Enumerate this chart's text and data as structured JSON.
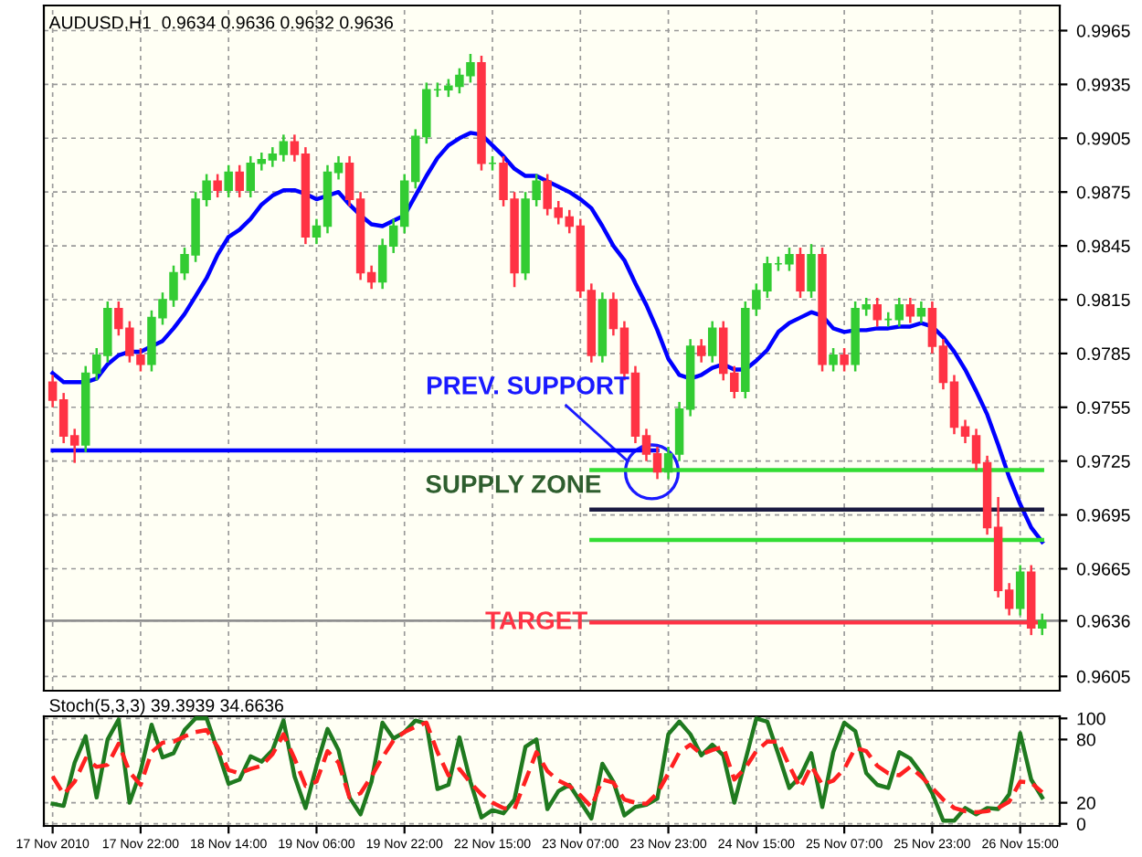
{
  "chart_data": [
    {
      "type": "candlestick",
      "title": "AUDUSD,H1  0.9634 0.9636 0.9632 0.9636",
      "categories": [
        null,
        null,
        null,
        null,
        null,
        null,
        null,
        null,
        null,
        null,
        null,
        null,
        null,
        null,
        null,
        null,
        null,
        null,
        null,
        null,
        null,
        null,
        null,
        null,
        null,
        null,
        null,
        null,
        null,
        null,
        null,
        null,
        null,
        null,
        null,
        null,
        null,
        null,
        null,
        null,
        null,
        null,
        null,
        null,
        null,
        null,
        null,
        null,
        null,
        null,
        null,
        null,
        null,
        null,
        null,
        null,
        null,
        null,
        null,
        null,
        null,
        null,
        null,
        null,
        null,
        null,
        null,
        null,
        null,
        null,
        null,
        null,
        null,
        null,
        null,
        null,
        null,
        null,
        null,
        null,
        null,
        null,
        null,
        null,
        null,
        null,
        null,
        null,
        null,
        null,
        null
      ],
      "ohlc": [
        [
          0.9769,
          0.9773,
          0.9755,
          0.9759
        ],
        [
          0.9759,
          0.9763,
          0.9735,
          0.9739
        ],
        [
          0.9739,
          0.9743,
          0.9724,
          0.9734
        ],
        [
          0.9734,
          0.9778,
          0.973,
          0.9774
        ],
        [
          0.9774,
          0.9788,
          0.977,
          0.9784
        ],
        [
          0.9784,
          0.9814,
          0.978,
          0.981
        ],
        [
          0.981,
          0.9814,
          0.9795,
          0.9799
        ],
        [
          0.9799,
          0.9803,
          0.978,
          0.9784
        ],
        [
          0.9784,
          0.9788,
          0.9775,
          0.9779
        ],
        [
          0.9779,
          0.9809,
          0.9775,
          0.9805
        ],
        [
          0.9805,
          0.9819,
          0.9801,
          0.9815
        ],
        [
          0.9815,
          0.9834,
          0.9811,
          0.983
        ],
        [
          0.983,
          0.9844,
          0.9826,
          0.984
        ],
        [
          0.984,
          0.9875,
          0.9836,
          0.9871
        ],
        [
          0.9871,
          0.9885,
          0.9867,
          0.9881
        ],
        [
          0.9881,
          0.9885,
          0.9872,
          0.9876
        ],
        [
          0.9876,
          0.989,
          0.9872,
          0.9886
        ],
        [
          0.9886,
          0.989,
          0.9872,
          0.9876
        ],
        [
          0.9876,
          0.9895,
          0.9872,
          0.9891
        ],
        [
          0.9891,
          0.9897,
          0.9887,
          0.9893
        ],
        [
          0.9893,
          0.99,
          0.9889,
          0.9896
        ],
        [
          0.9896,
          0.9907,
          0.9892,
          0.9903
        ],
        [
          0.9903,
          0.9907,
          0.9892,
          0.9896
        ],
        [
          0.9896,
          0.99,
          0.9846,
          0.985
        ],
        [
          0.985,
          0.986,
          0.9846,
          0.9856
        ],
        [
          0.9856,
          0.989,
          0.9852,
          0.9886
        ],
        [
          0.9886,
          0.9895,
          0.9882,
          0.9891
        ],
        [
          0.9891,
          0.9895,
          0.9867,
          0.9871
        ],
        [
          0.9871,
          0.9875,
          0.9826,
          0.983
        ],
        [
          0.983,
          0.9834,
          0.9821,
          0.9825
        ],
        [
          0.9825,
          0.9849,
          0.9821,
          0.9845
        ],
        [
          0.9845,
          0.986,
          0.9841,
          0.9856
        ],
        [
          0.9856,
          0.9885,
          0.9852,
          0.9881
        ],
        [
          0.9881,
          0.991,
          0.9877,
          0.9906
        ],
        [
          0.9906,
          0.9936,
          0.9902,
          0.9932
        ],
        [
          0.9932,
          0.9936,
          0.9928,
          0.9932
        ],
        [
          0.9932,
          0.9938,
          0.9928,
          0.9934
        ],
        [
          0.9934,
          0.9944,
          0.993,
          0.994
        ],
        [
          0.994,
          0.9952,
          0.9936,
          0.9947
        ],
        [
          0.9947,
          0.9951,
          0.9887,
          0.9891
        ],
        [
          0.9891,
          0.9895,
          0.9887,
          0.9891
        ],
        [
          0.9891,
          0.9895,
          0.9867,
          0.9871
        ],
        [
          0.9871,
          0.9875,
          0.9822,
          0.983
        ],
        [
          0.983,
          0.9875,
          0.9826,
          0.9871
        ],
        [
          0.9871,
          0.9885,
          0.9867,
          0.9881
        ],
        [
          0.9881,
          0.9885,
          0.9862,
          0.9866
        ],
        [
          0.9866,
          0.987,
          0.9857,
          0.9861
        ],
        [
          0.9861,
          0.9865,
          0.9852,
          0.9856
        ],
        [
          0.9856,
          0.986,
          0.9816,
          0.982
        ],
        [
          0.982,
          0.9824,
          0.978,
          0.9784
        ],
        [
          0.9784,
          0.9819,
          0.978,
          0.9815
        ],
        [
          0.9815,
          0.9819,
          0.9795,
          0.9799
        ],
        [
          0.9799,
          0.9803,
          0.977,
          0.9774
        ],
        [
          0.9774,
          0.9778,
          0.9735,
          0.9739
        ],
        [
          0.9739,
          0.9743,
          0.9725,
          0.9729
        ],
        [
          0.9729,
          0.9733,
          0.9715,
          0.9719
        ],
        [
          0.9719,
          0.9733,
          0.9715,
          0.9729
        ],
        [
          0.9729,
          0.9758,
          0.9725,
          0.9754
        ],
        [
          0.9754,
          0.9793,
          0.975,
          0.9789
        ],
        [
          0.9789,
          0.9793,
          0.978,
          0.9784
        ],
        [
          0.9784,
          0.9803,
          0.978,
          0.9799
        ],
        [
          0.9799,
          0.9803,
          0.977,
          0.9774
        ],
        [
          0.9774,
          0.9778,
          0.976,
          0.9764
        ],
        [
          0.9764,
          0.9814,
          0.976,
          0.981
        ],
        [
          0.981,
          0.9824,
          0.9806,
          0.982
        ],
        [
          0.982,
          0.9839,
          0.9816,
          0.9835
        ],
        [
          0.9835,
          0.9839,
          0.9831,
          0.9835
        ],
        [
          0.9835,
          0.9844,
          0.9831,
          0.984
        ],
        [
          0.984,
          0.9844,
          0.9816,
          0.982
        ],
        [
          0.982,
          0.9846,
          0.9816,
          0.984
        ],
        [
          0.984,
          0.9844,
          0.9775,
          0.9779
        ],
        [
          0.9779,
          0.9788,
          0.9775,
          0.9784
        ],
        [
          0.9784,
          0.9788,
          0.9775,
          0.9779
        ],
        [
          0.9779,
          0.9814,
          0.9775,
          0.981
        ],
        [
          0.981,
          0.9816,
          0.9806,
          0.9812
        ],
        [
          0.9812,
          0.9816,
          0.98,
          0.9804
        ],
        [
          0.9804,
          0.9808,
          0.98,
          0.9804
        ],
        [
          0.9804,
          0.9816,
          0.98,
          0.9812
        ],
        [
          0.9812,
          0.9816,
          0.9802,
          0.9806
        ],
        [
          0.9806,
          0.9814,
          0.9802,
          0.981
        ],
        [
          0.981,
          0.9814,
          0.9785,
          0.9789
        ],
        [
          0.9789,
          0.9793,
          0.9765,
          0.9769
        ],
        [
          0.9769,
          0.9773,
          0.974,
          0.9744
        ],
        [
          0.9744,
          0.9748,
          0.9735,
          0.9739
        ],
        [
          0.9739,
          0.9743,
          0.972,
          0.9724
        ],
        [
          0.9724,
          0.9728,
          0.9684,
          0.9688
        ],
        [
          0.9688,
          0.9705,
          0.9649,
          0.9653
        ],
        [
          0.9653,
          0.9657,
          0.9639,
          0.9643
        ],
        [
          0.9643,
          0.9667,
          0.9639,
          0.9663
        ],
        [
          0.9663,
          0.9667,
          0.9628,
          0.9632
        ],
        [
          0.9632,
          0.964,
          0.9628,
          0.9636
        ]
      ],
      "series": [
        {
          "type": "line",
          "color": "#0000ff",
          "values": [
            0.9774,
            0.9769,
            0.9769,
            0.9769,
            0.9771,
            0.9779,
            0.9784,
            0.9786,
            0.9786,
            0.9789,
            0.9792,
            0.9799,
            0.9807,
            0.9817,
            0.9827,
            0.984,
            0.985,
            0.9854,
            0.986,
            0.9868,
            0.9873,
            0.9876,
            0.9876,
            0.9874,
            0.9871,
            0.9873,
            0.9875,
            0.9868,
            0.9862,
            0.9857,
            0.9856,
            0.9859,
            0.9862,
            0.9873,
            0.9884,
            0.9894,
            0.9901,
            0.9905,
            0.9908,
            0.9907,
            0.9901,
            0.9895,
            0.9888,
            0.9884,
            0.9884,
            0.9881,
            0.9878,
            0.9875,
            0.9871,
            0.9866,
            0.9856,
            0.9845,
            0.9837,
            0.9824,
            0.9812,
            0.9798,
            0.9782,
            0.9773,
            0.9771,
            0.9773,
            0.9777,
            0.9779,
            0.9776,
            0.9776,
            0.9781,
            0.9787,
            0.9797,
            0.9802,
            0.9805,
            0.9808,
            0.9806,
            0.9799,
            0.9797,
            0.9798,
            0.9798,
            0.9799,
            0.9799,
            0.98,
            0.98,
            0.9802,
            0.98,
            0.9794,
            0.9786,
            0.9776,
            0.9764,
            0.9751,
            0.9734,
            0.9716,
            0.9701,
            0.9688,
            0.968
          ]
        },
        {
          "type": "line",
          "color": "#0000ff",
          "values": [
            0.9731,
            0.9731,
            0.9731,
            0.9731,
            0.9731,
            0.9731,
            0.9731,
            0.9731,
            0.9731,
            0.9731,
            0.9731,
            0.9731,
            0.9731,
            0.9731,
            0.9731,
            0.9731,
            0.9731,
            0.9731,
            0.9731,
            0.9731,
            0.9731,
            0.9731,
            0.9731,
            0.9731,
            0.9731,
            0.9731,
            0.9731,
            0.9731,
            0.9731,
            0.9731,
            0.9731,
            0.9731,
            0.9731,
            0.9731,
            0.9731,
            0.9731,
            0.9731,
            0.9731,
            0.9731,
            0.9731,
            0.9731,
            0.9731,
            0.9731,
            0.9731,
            0.9731,
            0.9731,
            0.9731,
            0.9731,
            0.9731,
            0.9731,
            0.9731,
            0.9731,
            0.9731,
            0.9731,
            0.9731,
            0.9731,
            null,
            null,
            null,
            null,
            null,
            null,
            null,
            null,
            null,
            null,
            null,
            null,
            null,
            null,
            null,
            null,
            null,
            null,
            null,
            null,
            null,
            null,
            null,
            null,
            null,
            null,
            null,
            null,
            null,
            null,
            null,
            null,
            null,
            null,
            null
          ]
        },
        {
          "type": "line",
          "color": "#33dd33",
          "values": [
            null,
            null,
            null,
            null,
            null,
            null,
            null,
            null,
            null,
            null,
            null,
            null,
            null,
            null,
            null,
            null,
            null,
            null,
            null,
            null,
            null,
            null,
            null,
            null,
            null,
            null,
            null,
            null,
            null,
            null,
            null,
            null,
            null,
            null,
            null,
            null,
            null,
            null,
            null,
            null,
            null,
            null,
            null,
            null,
            null,
            null,
            null,
            null,
            null,
            0.972,
            0.972,
            0.972,
            0.972,
            0.972,
            0.972,
            0.972,
            0.972,
            0.972,
            0.972,
            0.972,
            0.972,
            0.972,
            0.972,
            0.972,
            0.972,
            0.972,
            0.972,
            0.972,
            0.972,
            0.972,
            0.972,
            0.972,
            0.972,
            0.972,
            0.972,
            0.972,
            0.972,
            0.972,
            0.972,
            0.972,
            0.972,
            0.972,
            0.972,
            0.972,
            0.972,
            0.972,
            0.972,
            0.972,
            0.972,
            0.972,
            0.972
          ]
        },
        {
          "type": "line",
          "color": "#1a1a40",
          "values": [
            null,
            null,
            null,
            null,
            null,
            null,
            null,
            null,
            null,
            null,
            null,
            null,
            null,
            null,
            null,
            null,
            null,
            null,
            null,
            null,
            null,
            null,
            null,
            null,
            null,
            null,
            null,
            null,
            null,
            null,
            null,
            null,
            null,
            null,
            null,
            null,
            null,
            null,
            null,
            null,
            null,
            null,
            null,
            null,
            null,
            null,
            null,
            null,
            null,
            0.9698,
            0.9698,
            0.9698,
            0.9698,
            0.9698,
            0.9698,
            0.9698,
            0.9698,
            0.9698,
            0.9698,
            0.9698,
            0.9698,
            0.9698,
            0.9698,
            0.9698,
            0.9698,
            0.9698,
            0.9698,
            0.9698,
            0.9698,
            0.9698,
            0.9698,
            0.9698,
            0.9698,
            0.9698,
            0.9698,
            0.9698,
            0.9698,
            0.9698,
            0.9698,
            0.9698,
            0.9698,
            0.9698,
            0.9698,
            0.9698,
            0.9698,
            0.9698,
            0.9698,
            0.9698,
            0.9698,
            0.9698,
            0.9698
          ]
        },
        {
          "type": "line",
          "color": "#33dd33",
          "values": [
            null,
            null,
            null,
            null,
            null,
            null,
            null,
            null,
            null,
            null,
            null,
            null,
            null,
            null,
            null,
            null,
            null,
            null,
            null,
            null,
            null,
            null,
            null,
            null,
            null,
            null,
            null,
            null,
            null,
            null,
            null,
            null,
            null,
            null,
            null,
            null,
            null,
            null,
            null,
            null,
            null,
            null,
            null,
            null,
            null,
            null,
            null,
            null,
            null,
            0.9681,
            0.9681,
            0.9681,
            0.9681,
            0.9681,
            0.9681,
            0.9681,
            0.9681,
            0.9681,
            0.9681,
            0.9681,
            0.9681,
            0.9681,
            0.9681,
            0.9681,
            0.9681,
            0.9681,
            0.9681,
            0.9681,
            0.9681,
            0.9681,
            0.9681,
            0.9681,
            0.9681,
            0.9681,
            0.9681,
            0.9681,
            0.9681,
            0.9681,
            0.9681,
            0.9681,
            0.9681,
            0.9681,
            0.9681,
            0.9681,
            0.9681,
            0.9681,
            0.9681,
            0.9681,
            0.9681,
            0.9681,
            0.9681
          ]
        },
        {
          "type": "line",
          "color": "#ff3344",
          "values": [
            null,
            null,
            null,
            null,
            null,
            null,
            null,
            null,
            null,
            null,
            null,
            null,
            null,
            null,
            null,
            null,
            null,
            null,
            null,
            null,
            null,
            null,
            null,
            null,
            null,
            null,
            null,
            null,
            null,
            null,
            null,
            null,
            null,
            null,
            null,
            null,
            null,
            null,
            null,
            null,
            null,
            null,
            null,
            null,
            null,
            null,
            null,
            null,
            null,
            0.9635,
            0.9635,
            0.9635,
            0.9635,
            0.9635,
            0.9635,
            0.9635,
            0.9635,
            0.9635,
            0.9635,
            0.9635,
            0.9635,
            0.9635,
            0.9635,
            0.9635,
            0.9635,
            0.9635,
            0.9635,
            0.9635,
            0.9635,
            0.9635,
            0.9635,
            0.9635,
            0.9635,
            0.9635,
            0.9635,
            0.9635,
            0.9635,
            0.9635,
            0.9635,
            0.9635,
            0.9635,
            0.9635,
            0.9635,
            0.9635,
            0.9635,
            0.9635,
            0.9635,
            0.9635,
            0.9635,
            0.9635,
            0.9635
          ]
        }
      ],
      "ref_lines": [
        {
          "axis": "y",
          "value": 0.9636,
          "color": "#909090"
        }
      ],
      "annotations": [
        "PREV. SUPPORT",
        "SUPPLY ZONE",
        "TARGET"
      ],
      "ylim": [
        0.9597,
        0.9979
      ],
      "yticks": [
        0.9605,
        {
          "value": 0.9636,
          "label": "0.9636"
        },
        0.9665,
        0.9695,
        0.9725,
        0.9755,
        0.9785,
        0.9815,
        0.9845,
        0.9875,
        0.9905,
        0.9935,
        0.9965
      ],
      "grid": true,
      "tick_labels": "y"
    },
    {
      "type": "line",
      "title": "Stoch(5,3,3) 39.3939 34.6636",
      "categories": [
        "17 Nov 2010",
        null,
        null,
        null,
        null,
        null,
        null,
        null,
        "17 Nov 22:00",
        null,
        null,
        null,
        null,
        null,
        null,
        null,
        "18 Nov 14:00",
        null,
        null,
        null,
        null,
        null,
        null,
        null,
        "19 Nov 06:00",
        null,
        null,
        null,
        null,
        null,
        null,
        null,
        "19 Nov 22:00",
        null,
        null,
        null,
        null,
        null,
        null,
        null,
        "22 Nov 15:00",
        null,
        null,
        null,
        null,
        null,
        null,
        null,
        "23 Nov 07:00",
        null,
        null,
        null,
        null,
        null,
        null,
        null,
        "23 Nov 23:00",
        null,
        null,
        null,
        null,
        null,
        null,
        null,
        "24 Nov 15:00",
        null,
        null,
        null,
        null,
        null,
        null,
        null,
        "25 Nov 07:00",
        null,
        null,
        null,
        null,
        null,
        null,
        null,
        "25 Nov 23:00",
        null,
        null,
        null,
        null,
        null,
        null,
        null,
        "26 Nov 15:00",
        null,
        null
      ],
      "series": [
        {
          "color": "#1f7a1f",
          "values": [
            19,
            17,
            58,
            83,
            25,
            80,
            99,
            20,
            50,
            94,
            63,
            67,
            89,
            100,
            100,
            70,
            38,
            42,
            64,
            59,
            70,
            98,
            45,
            15,
            55,
            90,
            70,
            25,
            9,
            40,
            96,
            81,
            87,
            98,
            95,
            33,
            37,
            82,
            40,
            6,
            13,
            10,
            23,
            73,
            80,
            14,
            31,
            37,
            21,
            5,
            57,
            40,
            8,
            16,
            18,
            24,
            85,
            97,
            85,
            65,
            75,
            65,
            20,
            60,
            100,
            97,
            66,
            34,
            45,
            67,
            16,
            68,
            96,
            88,
            48,
            37,
            34,
            68,
            62,
            48,
            29,
            3,
            3,
            15,
            9,
            15,
            14,
            28,
            86,
            42,
            25
          ]
        },
        {
          "color": "#ff2020",
          "line_style": "dashed",
          "values": [
            45,
            28,
            40,
            62,
            54,
            56,
            76,
            49,
            37,
            68,
            77,
            78,
            83,
            87,
            89,
            73,
            51,
            48,
            52,
            55,
            66,
            85,
            62,
            36,
            40,
            69,
            58,
            25,
            29,
            45,
            63,
            79,
            87,
            92,
            96,
            68,
            46,
            52,
            39,
            28,
            20,
            15,
            14,
            41,
            68,
            50,
            41,
            36,
            27,
            16,
            42,
            39,
            23,
            20,
            19,
            29,
            48,
            68,
            75,
            66,
            70,
            73,
            42,
            53,
            69,
            78,
            78,
            55,
            34,
            55,
            37,
            41,
            52,
            72,
            69,
            55,
            48,
            46,
            54,
            45,
            34,
            23,
            15,
            12,
            11,
            12,
            15,
            21,
            40,
            39,
            30
          ]
        }
      ],
      "ylim": [
        -2,
        102
      ],
      "yticks": [
        0,
        20,
        80,
        100
      ],
      "grid": true
    }
  ]
}
